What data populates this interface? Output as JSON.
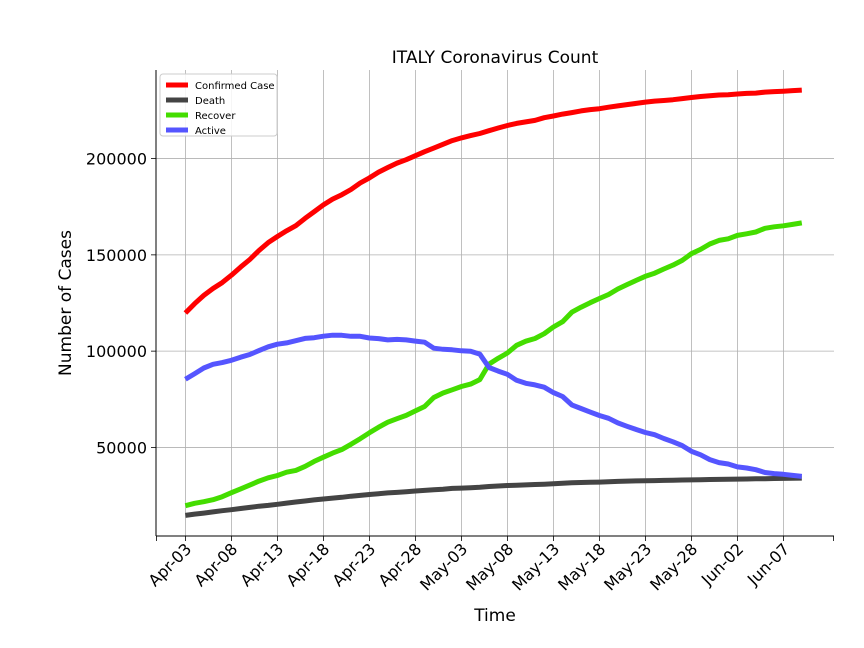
{
  "chart_data": {
    "type": "line",
    "title": "ITALY Coronavirus Count",
    "xlabel": "Time",
    "ylabel": "Number of Cases",
    "x_tick_labels": [
      "Apr-03",
      "Apr-08",
      "Apr-13",
      "Apr-18",
      "Apr-23",
      "Apr-28",
      "May-03",
      "May-08",
      "May-13",
      "May-18",
      "May-23",
      "May-28",
      "Jun-02",
      "Jun-07"
    ],
    "x_tick_day_index": [
      0,
      5,
      10,
      15,
      20,
      25,
      30,
      35,
      40,
      45,
      50,
      55,
      60,
      65
    ],
    "y_ticks": [
      50000,
      100000,
      150000,
      200000
    ],
    "y_tick_labels": [
      "50000",
      "100000",
      "150000",
      "200000"
    ],
    "xlim": [
      -3.2,
      70.5
    ],
    "ylim": [
      4000,
      246000
    ],
    "grid": true,
    "legend_position": "top-left",
    "colors": {
      "Confirmed Case": "#ff0000",
      "Death": "#444444",
      "Recover": "#44dd00",
      "Active": "#5555ff"
    },
    "x_days_from_apr03": [
      0,
      1,
      2,
      3,
      4,
      5,
      6,
      7,
      8,
      9,
      10,
      11,
      12,
      13,
      14,
      15,
      16,
      17,
      18,
      19,
      20,
      21,
      22,
      23,
      24,
      25,
      26,
      27,
      28,
      29,
      30,
      31,
      32,
      33,
      34,
      35,
      36,
      37,
      38,
      39,
      40,
      41,
      42,
      43,
      44,
      45,
      46,
      47,
      48,
      49,
      50,
      51,
      52,
      53,
      54,
      55,
      56,
      57,
      58,
      59,
      60,
      61,
      62,
      63,
      64,
      65,
      66,
      67
    ],
    "series": [
      {
        "name": "Confirmed Case",
        "values": [
          119827,
          124632,
          128948,
          132547,
          135586,
          139422,
          143626,
          147577,
          152271,
          156363,
          159516,
          162488,
          165155,
          168941,
          172434,
          175925,
          178972,
          181228,
          183957,
          187327,
          189973,
          192994,
          195351,
          197675,
          199414,
          201505,
          203591,
          205463,
          207428,
          209328,
          210717,
          211938,
          213013,
          214457,
          215858,
          217185,
          218268,
          219070,
          219814,
          221216,
          222104,
          223096,
          223885,
          224760,
          225435,
          225886,
          226699,
          227364,
          228006,
          228658,
          229327,
          229858,
          230158,
          230555,
          231139,
          231732,
          232248,
          232664,
          233019,
          233197,
          233515,
          233836,
          234013,
          234531,
          234801,
          234998,
          235278,
          235561
        ]
      },
      {
        "name": "Death",
        "values": [
          14681,
          15362,
          15887,
          16523,
          17127,
          17669,
          18279,
          18849,
          19468,
          19899,
          20465,
          21067,
          21645,
          22170,
          22745,
          23227,
          23660,
          24114,
          24648,
          25085,
          25549,
          25969,
          26384,
          26644,
          26977,
          27359,
          27682,
          27967,
          28236,
          28710,
          28884,
          29079,
          29315,
          29684,
          29958,
          30201,
          30395,
          30560,
          30739,
          30911,
          31106,
          31368,
          31610,
          31763,
          31908,
          32007,
          32169,
          32330,
          32486,
          32616,
          32735,
          32785,
          32877,
          32955,
          33072,
          33142,
          33229,
          33340,
          33415,
          33475,
          33530,
          33601,
          33689,
          33774,
          33846,
          33899,
          33964,
          34043
        ]
      },
      {
        "name": "Recover",
        "values": [
          19758,
          20996,
          21815,
          22837,
          24392,
          26491,
          28470,
          30455,
          32534,
          34211,
          35435,
          37130,
          38092,
          40164,
          42727,
          44927,
          47055,
          48877,
          51600,
          54543,
          57576,
          60498,
          63120,
          64928,
          66624,
          68941,
          71252,
          75945,
          78249,
          79914,
          81654,
          82879,
          85231,
          93245,
          96276,
          99023,
          103031,
          105186,
          106587,
          109039,
          112541,
          115288,
          120205,
          122810,
          125176,
          127326,
          129401,
          132282,
          134560,
          136720,
          138840,
          140479,
          142658,
          144658,
          147101,
          150604,
          152844,
          155633,
          157507,
          158355,
          160092,
          160938,
          161895,
          163781,
          164563,
          165078,
          165837,
          166584
        ]
      },
      {
        "name": "Active",
        "values": [
          85388,
          88274,
          91246,
          93187,
          94067,
          95262,
          96877,
          98273,
          100269,
          102253,
          103616,
          104291,
          105418,
          106607,
          106962,
          107771,
          108257,
          108237,
          107709,
          107699,
          106848,
          106527,
          105847,
          106103,
          105813,
          105205,
          104657,
          101551,
          100943,
          100704,
          100179,
          99980,
          98467,
          91528,
          89624,
          87961,
          84842,
          83324,
          82488,
          81266,
          78457,
          76440,
          72070,
          70187,
          68351,
          66553,
          65129,
          62752,
          60960,
          59322,
          57752,
          56594,
          54623,
          52942,
          50966,
          47986,
          46175,
          43691,
          42097,
          41367,
          39893,
          39297,
          38429,
          36976,
          36392,
          36021,
          35477,
          34934
        ]
      }
    ]
  }
}
